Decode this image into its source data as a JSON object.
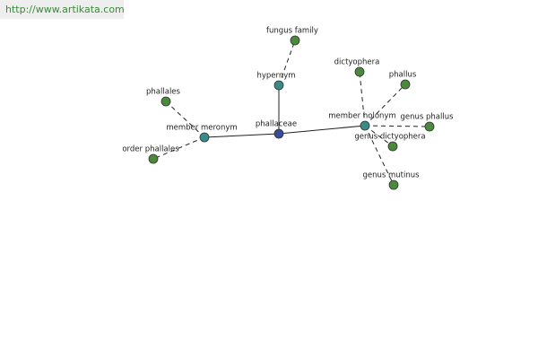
{
  "header": {
    "url": "http://www.artikata.com"
  },
  "nodes": [
    {
      "label": "phallaceae"
    },
    {
      "label": "hypernym"
    },
    {
      "label": "fungus family"
    },
    {
      "label": "member meronym"
    },
    {
      "label": "phallales"
    },
    {
      "label": "order phallales"
    },
    {
      "label": "member holonym"
    },
    {
      "label": "dictyophera"
    },
    {
      "label": "phallus"
    },
    {
      "label": "genus phallus"
    },
    {
      "label": "genus dictyophera"
    },
    {
      "label": "genus mutinus"
    }
  ]
}
